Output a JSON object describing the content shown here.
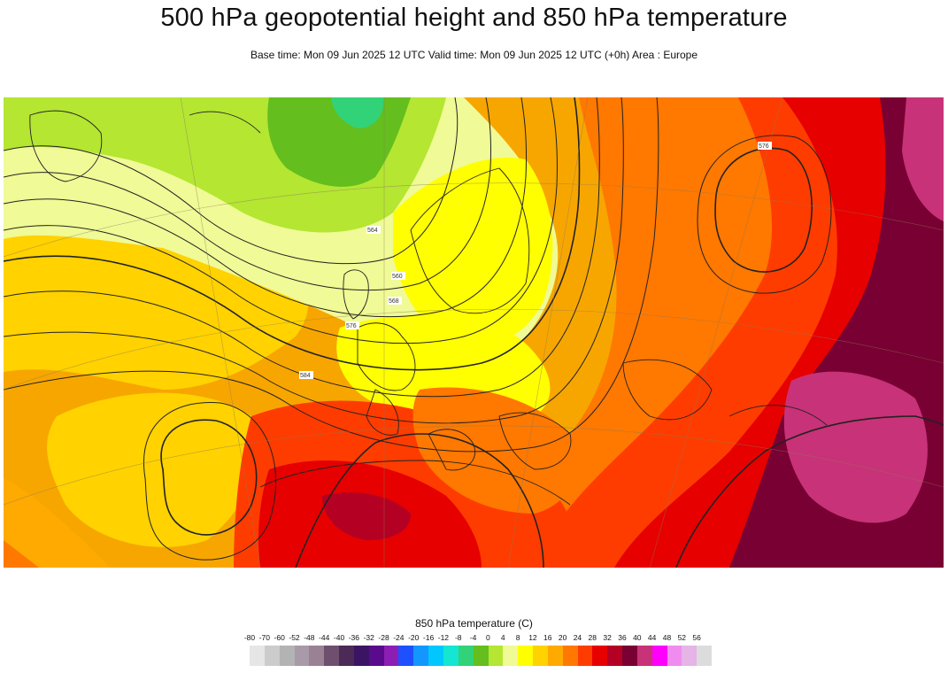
{
  "header": {
    "title": "500 hPa geopotential height and 850 hPa temperature",
    "subtitle": "Base time: Mon 09 Jun 2025 12 UTC Valid time: Mon 09 Jun 2025 12 UTC (+0h) Area : Europe"
  },
  "map": {
    "contour_labels": [
      "564",
      "560",
      "568",
      "576",
      "584",
      "576"
    ]
  },
  "legend": {
    "title": "850 hPa temperature (C)",
    "ticks": [
      "-80",
      "-70",
      "-60",
      "-52",
      "-48",
      "-44",
      "-40",
      "-36",
      "-32",
      "-28",
      "-24",
      "-20",
      "-16",
      "-12",
      "-8",
      "-4",
      "0",
      "4",
      "8",
      "12",
      "16",
      "20",
      "24",
      "28",
      "32",
      "36",
      "40",
      "44",
      "48",
      "52",
      "56"
    ],
    "colors": [
      "#e6e6e6",
      "#cccccc",
      "#b3b3b3",
      "#a89aa8",
      "#9a8294",
      "#6e506e",
      "#4b2a55",
      "#3c1464",
      "#5a0a8c",
      "#8c1eb4",
      "#1e50ff",
      "#1496ff",
      "#00c8ff",
      "#14e6d2",
      "#32d278",
      "#64be1e",
      "#b4e632",
      "#f0fa96",
      "#ffff00",
      "#ffd200",
      "#ffaa00",
      "#ff7800",
      "#ff3c00",
      "#e60000",
      "#b40023",
      "#780032",
      "#c83278",
      "#ff00ff",
      "#f08cf0",
      "#e6b4e6",
      "#dcdcdc"
    ]
  }
}
